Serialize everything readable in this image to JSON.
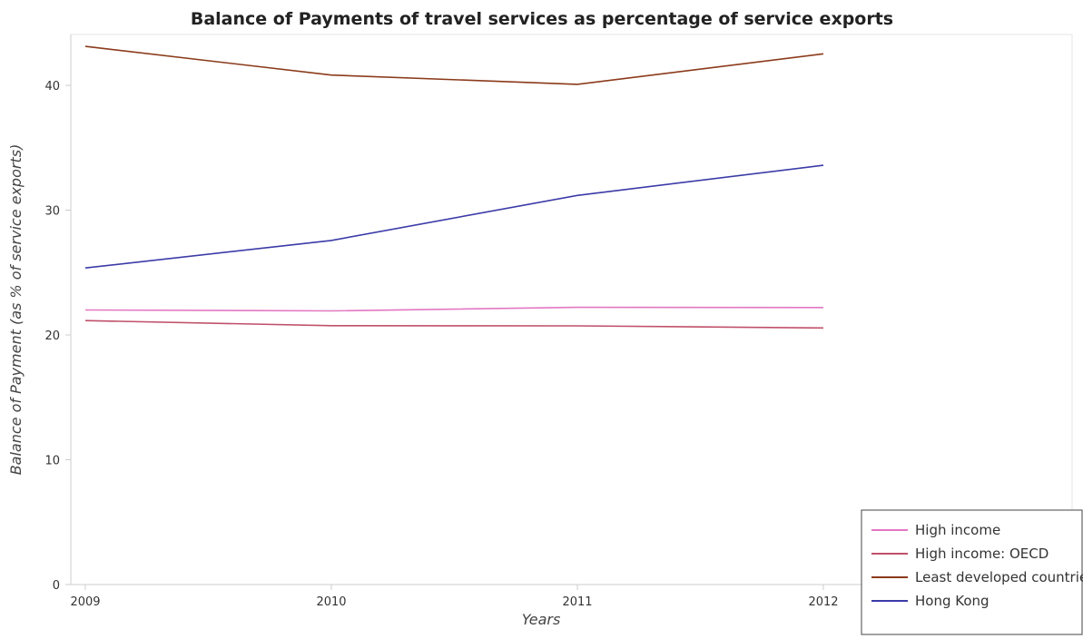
{
  "chart_data": {
    "type": "line",
    "title": "Balance of Payments of travel services as percentage of service exports",
    "xlabel": "Years",
    "ylabel": "Balance of Payment (as % of service exports)",
    "x": [
      "2009",
      "2010",
      "2011",
      "2012"
    ],
    "ylim": [
      0,
      45
    ],
    "yticks": [
      0,
      10,
      20,
      30,
      40
    ],
    "grid": false,
    "legend_position": "bottom-right",
    "series": [
      {
        "name": "High income",
        "color": "#e377c2",
        "values": [
          22.0,
          21.93,
          22.21,
          22.2
        ]
      },
      {
        "name": "High income: OECD",
        "color": "#c0506a",
        "values": [
          21.15,
          20.74,
          20.73,
          20.56
        ]
      },
      {
        "name": "Least developed countries",
        "color": "#8b3a1a",
        "values": [
          43.12,
          40.82,
          40.08,
          42.52
        ]
      },
      {
        "name": "Hong Kong",
        "color": "#3b3ba8",
        "values": [
          25.37,
          27.57,
          31.18,
          33.59
        ]
      }
    ]
  }
}
